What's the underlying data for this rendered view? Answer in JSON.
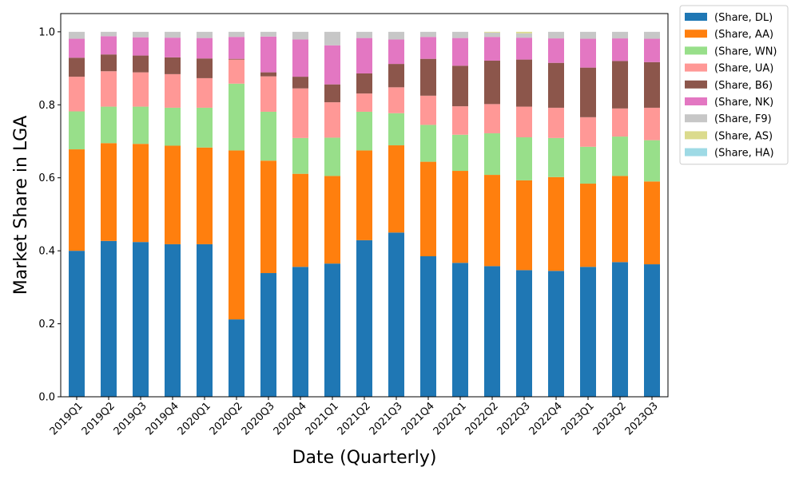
{
  "chart_data": {
    "type": "bar",
    "stacked": true,
    "xlabel": "Date (Quarterly)",
    "ylabel": "Market Share in LGA",
    "ylim": [
      0,
      1.05
    ],
    "yticks": [
      0.0,
      0.2,
      0.4,
      0.6,
      0.8,
      1.0
    ],
    "ytick_labels": [
      "0.0",
      "0.2",
      "0.4",
      "0.6",
      "0.8",
      "1.0"
    ],
    "legend_position": "outside-top-right",
    "categories": [
      "2019Q1",
      "2019Q2",
      "2019Q3",
      "2019Q4",
      "2020Q1",
      "2020Q2",
      "2020Q3",
      "2020Q4",
      "2021Q1",
      "2021Q2",
      "2021Q3",
      "2021Q4",
      "2022Q1",
      "2022Q2",
      "2022Q3",
      "2022Q4",
      "2023Q1",
      "2023Q2",
      "2023Q3"
    ],
    "series": [
      {
        "name": "(Share, DL)",
        "color": "#1f77b4",
        "values": [
          0.4,
          0.427,
          0.424,
          0.418,
          0.418,
          0.212,
          0.339,
          0.356,
          0.365,
          0.429,
          0.45,
          0.385,
          0.367,
          0.358,
          0.347,
          0.345,
          0.356,
          0.369,
          0.363
        ]
      },
      {
        "name": "(Share, AA)",
        "color": "#ff7f0e",
        "values": [
          0.278,
          0.268,
          0.269,
          0.27,
          0.265,
          0.463,
          0.308,
          0.255,
          0.24,
          0.246,
          0.239,
          0.259,
          0.252,
          0.25,
          0.246,
          0.257,
          0.228,
          0.236,
          0.227
        ]
      },
      {
        "name": "(Share, WN)",
        "color": "#98df8a",
        "values": [
          0.104,
          0.1,
          0.102,
          0.104,
          0.109,
          0.183,
          0.134,
          0.098,
          0.105,
          0.106,
          0.088,
          0.101,
          0.099,
          0.114,
          0.118,
          0.107,
          0.101,
          0.108,
          0.113
        ]
      },
      {
        "name": "(Share, UA)",
        "color": "#ff9896",
        "values": [
          0.095,
          0.097,
          0.094,
          0.092,
          0.081,
          0.066,
          0.097,
          0.136,
          0.097,
          0.05,
          0.071,
          0.08,
          0.078,
          0.08,
          0.084,
          0.083,
          0.081,
          0.077,
          0.089
        ]
      },
      {
        "name": "(Share, B6)",
        "color": "#8c564b",
        "values": [
          0.052,
          0.046,
          0.046,
          0.046,
          0.054,
          0.002,
          0.011,
          0.032,
          0.049,
          0.055,
          0.064,
          0.101,
          0.111,
          0.119,
          0.129,
          0.123,
          0.136,
          0.13,
          0.125
        ]
      },
      {
        "name": "(Share, NK)",
        "color": "#e377c2",
        "values": [
          0.052,
          0.05,
          0.05,
          0.054,
          0.056,
          0.06,
          0.098,
          0.102,
          0.107,
          0.097,
          0.067,
          0.06,
          0.076,
          0.065,
          0.06,
          0.067,
          0.079,
          0.062,
          0.064
        ]
      },
      {
        "name": "(Share, F9)",
        "color": "#c7c7c7",
        "values": [
          0.019,
          0.012,
          0.015,
          0.016,
          0.017,
          0.014,
          0.013,
          0.021,
          0.037,
          0.017,
          0.021,
          0.014,
          0.017,
          0.012,
          0.012,
          0.018,
          0.019,
          0.018,
          0.019
        ]
      },
      {
        "name": "(Share, AS)",
        "color": "#dbdb8d",
        "values": [
          0.0,
          0.0,
          0.0,
          0.0,
          0.0,
          0.0,
          0.0,
          0.0,
          0.0,
          0.0,
          0.0,
          0.0,
          0.0,
          0.002,
          0.004,
          0.0,
          0.0,
          0.0,
          0.0
        ]
      },
      {
        "name": "(Share, HA)",
        "color": "#9edae5",
        "values": [
          0.0,
          0.0,
          0.0,
          0.0,
          0.0,
          0.0,
          0.0,
          0.0,
          0.0,
          0.0,
          0.0,
          0.0,
          0.0,
          0.0,
          0.0,
          0.0,
          0.0,
          0.0,
          0.0
        ]
      }
    ]
  }
}
